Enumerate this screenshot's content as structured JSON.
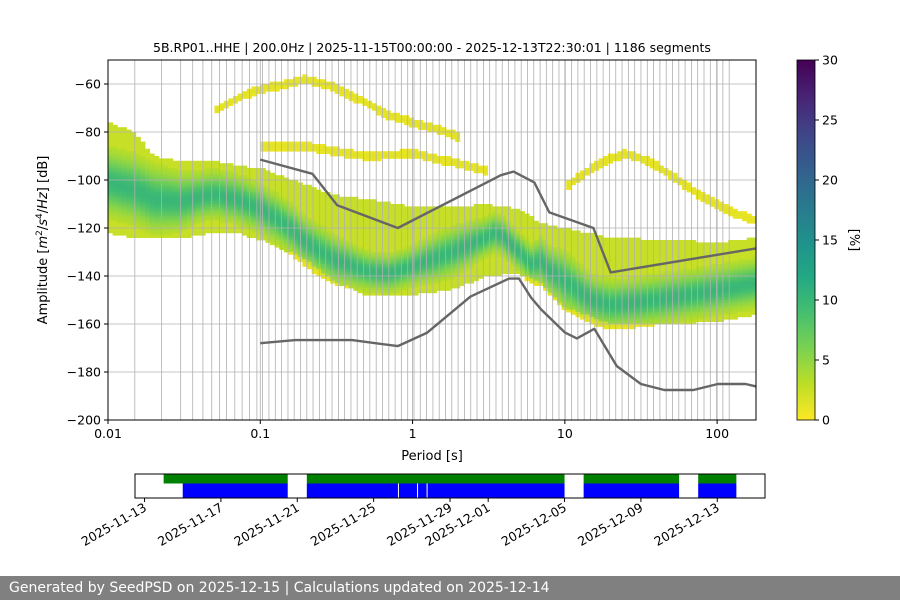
{
  "chart_data": {
    "type": "heatmap",
    "title": "5B.RP01..HHE | 200.0Hz | 2025-11-15T00:00:00 - 2025-12-13T22:30:01 | 1186 segments",
    "xlabel": "Period [s]",
    "ylabel_parts": [
      "Amplitude [",
      "m",
      "2",
      "/",
      "s",
      "4",
      "/",
      "Hz",
      "] [dB]"
    ],
    "x_scale": "log",
    "xlim": [
      0.01,
      180
    ],
    "ylim": [
      -200,
      -50
    ],
    "x_ticks": [
      {
        "value": 0.01,
        "label": "0.01"
      },
      {
        "value": 0.1,
        "label": "0.1"
      },
      {
        "value": 1,
        "label": "1"
      },
      {
        "value": 10,
        "label": "10"
      },
      {
        "value": 100,
        "label": "100"
      }
    ],
    "y_ticks": [
      {
        "value": -60,
        "label": "−60"
      },
      {
        "value": -80,
        "label": "−80"
      },
      {
        "value": -100,
        "label": "−100"
      },
      {
        "value": -120,
        "label": "−120"
      },
      {
        "value": -140,
        "label": "−140"
      },
      {
        "value": -160,
        "label": "−160"
      },
      {
        "value": -180,
        "label": "−180"
      },
      {
        "value": -200,
        "label": "−200"
      }
    ],
    "grid_periods": [
      0.015,
      0.0225,
      0.03,
      0.036,
      0.042,
      0.048,
      0.054,
      0.06,
      0.068,
      0.076,
      0.085,
      0.095,
      0.1035,
      0.114,
      0.1255,
      0.138,
      0.152,
      0.167,
      0.184,
      0.202,
      0.222,
      0.245,
      0.269,
      0.296,
      0.326,
      0.358,
      0.394,
      0.433,
      0.477,
      0.524,
      0.577,
      0.634,
      0.698,
      0.768,
      0.844,
      0.929,
      1.022,
      1.124,
      1.236,
      1.36,
      1.496,
      1.645,
      1.81,
      1.99,
      2.19,
      2.41,
      2.65,
      2.92,
      3.21,
      3.53,
      3.88,
      4.27,
      4.7,
      5.17,
      5.68,
      6.25,
      6.88,
      7.56,
      8.32,
      9.15,
      10.07,
      11.08,
      12.18,
      13.4,
      14.74,
      16.22,
      17.84,
      19.63,
      21.59,
      23.75,
      26.13,
      28.74,
      31.6,
      34.8,
      38.2,
      42.1,
      46.3,
      50.9,
      56.0,
      61.6,
      67.8,
      74.5,
      82.0,
      90.2,
      99.2,
      109.1,
      120.0
    ],
    "nlnm": {
      "name": "NLNM",
      "period": [
        0.1,
        0.17,
        0.4,
        0.8,
        1.24,
        2.4,
        4.3,
        5.0,
        6.0,
        7.0,
        10.0,
        12.0,
        15.6,
        21.9,
        31.6,
        45.0,
        70.0,
        101.0,
        154.0,
        180.0
      ],
      "db": [
        -168.0,
        -166.7,
        -166.7,
        -169.2,
        -163.7,
        -148.6,
        -141.1,
        -141.1,
        -149.0,
        -154.0,
        -163.5,
        -166.0,
        -162.0,
        -177.5,
        -185.0,
        -187.5,
        -187.5,
        -185.0,
        -185.0,
        -186.0
      ]
    },
    "nhnm": {
      "name": "NHNM",
      "period": [
        0.1,
        0.22,
        0.32,
        0.8,
        3.8,
        4.6,
        6.3,
        7.9,
        15.4,
        20.0,
        180.0
      ],
      "db": [
        -91.5,
        -97.4,
        -110.5,
        -120.0,
        -98.0,
        -96.5,
        -101.0,
        -113.5,
        -120.0,
        -138.5,
        -128.5
      ]
    },
    "density_bands": [
      {
        "name": "noise-mode",
        "intensity": 0.72,
        "period": [
          0.01,
          0.015,
          0.02,
          0.03,
          0.04,
          0.05,
          0.07,
          0.1,
          0.15,
          0.2,
          0.3,
          0.5,
          0.7,
          1.0,
          1.5,
          2.0,
          3.0,
          3.5,
          4.0,
          5.0,
          6.0,
          7.0,
          8.0,
          10.0,
          15.0,
          20.0,
          30.0,
          50.0,
          100.0,
          180.0
        ],
        "db": [
          -101,
          -104,
          -108,
          -109,
          -107,
          -106,
          -108,
          -112,
          -119,
          -126,
          -133,
          -138,
          -139,
          -136,
          -132,
          -129,
          -124,
          -122,
          -124,
          -130,
          -135,
          -134,
          -138,
          -142,
          -150,
          -152,
          -151,
          -149,
          -146,
          -143
        ],
        "halfwidth": [
          7,
          7,
          7,
          6,
          5,
          5,
          5,
          5,
          5,
          5,
          5,
          4,
          4,
          4,
          5,
          5,
          4,
          4,
          4,
          4,
          4,
          5,
          5,
          6,
          5,
          5,
          5,
          5,
          5,
          5
        ]
      },
      {
        "name": "spread",
        "intensity": 0.25,
        "period": [
          0.01,
          0.015,
          0.02,
          0.03,
          0.05,
          0.07,
          0.1,
          0.2,
          0.3,
          0.5,
          1.0,
          2.0,
          3.0,
          5.0,
          7.0,
          10.0,
          20.0,
          50.0,
          100.0,
          180.0
        ],
        "top_db": [
          -76,
          -80,
          -90,
          -92,
          -92,
          -94,
          -95,
          -102,
          -106,
          -108,
          -111,
          -111,
          -110,
          -112,
          -118,
          -120,
          -124,
          -125,
          -126,
          -124
        ],
        "bottom_db": [
          -122,
          -124,
          -124,
          -124,
          -122,
          -122,
          -125,
          -133,
          -142,
          -148,
          -148,
          -145,
          -140,
          -139,
          -143,
          -153,
          -160,
          -160,
          -159,
          -156
        ]
      },
      {
        "name": "upper-arc",
        "intensity": 0.12,
        "period": [
          0.05,
          0.07,
          0.1,
          0.15,
          0.2,
          0.3,
          0.5,
          0.7,
          1.0,
          1.5,
          2.0
        ],
        "db": [
          -71,
          -66,
          -62,
          -60,
          -58,
          -61,
          -68,
          -73,
          -76,
          -79,
          -82
        ],
        "halfwidth": [
          2,
          2,
          2,
          2,
          2,
          2,
          2,
          2,
          2,
          2,
          2
        ]
      },
      {
        "name": "mid-arc",
        "intensity": 0.12,
        "period": [
          0.1,
          0.2,
          0.3,
          0.5,
          1.0,
          2.0,
          3.0
        ],
        "db": [
          -86,
          -86,
          -88,
          -90,
          -89,
          -93,
          -96
        ],
        "halfwidth": [
          2,
          2,
          2,
          2,
          2,
          2,
          2
        ]
      },
      {
        "name": "right-arc",
        "intensity": 0.12,
        "period": [
          10.0,
          15.0,
          20.0,
          25.0,
          35.0,
          50.0,
          80.0,
          120.0,
          180.0
        ],
        "db": [
          -103,
          -95,
          -91,
          -89,
          -92,
          -98,
          -107,
          -113,
          -117
        ],
        "halfwidth": [
          2,
          2,
          2,
          2,
          2,
          2,
          2,
          2,
          2
        ]
      }
    ],
    "colorbar": {
      "label": "[%]",
      "min": 0,
      "max": 30,
      "ticks": [
        {
          "value": 0,
          "label": "0"
        },
        {
          "value": 5,
          "label": "5"
        },
        {
          "value": 10,
          "label": "10"
        },
        {
          "value": 15,
          "label": "15"
        },
        {
          "value": 20,
          "label": "20"
        },
        {
          "value": 25,
          "label": "25"
        },
        {
          "value": 30,
          "label": "30"
        }
      ],
      "colormap": "viridis_r"
    },
    "availability": {
      "date_ticks": [
        {
          "day": 2,
          "label": "2025-11-13"
        },
        {
          "day": 6,
          "label": "2025-11-17"
        },
        {
          "day": 10,
          "label": "2025-11-21"
        },
        {
          "day": 14,
          "label": "2025-11-25"
        },
        {
          "day": 18,
          "label": "2025-11-29"
        },
        {
          "day": 20,
          "label": "2025-12-01"
        },
        {
          "day": 24,
          "label": "2025-12-05"
        },
        {
          "day": 28,
          "label": "2025-12-09"
        },
        {
          "day": 32,
          "label": "2025-12-13"
        }
      ],
      "xlim_days": [
        1.5,
        34.5
      ],
      "data_segments": [
        [
          4.0,
          9.5
        ],
        [
          10.5,
          24.0
        ],
        [
          25.0,
          30.0
        ],
        [
          31.0,
          33.0
        ]
      ],
      "psd_segments": [
        [
          3.0,
          9.5
        ],
        [
          10.5,
          24.0
        ],
        [
          25.0,
          30.0
        ],
        [
          31.0,
          33.0
        ]
      ],
      "data_gaps": [
        15.3,
        16.3,
        16.8
      ],
      "data_color": "#0000ff",
      "psd_color": "#008000"
    }
  },
  "footer": {
    "text": "Generated by SeedPSD on 2025-12-15 | Calculations updated on 2025-12-14"
  }
}
